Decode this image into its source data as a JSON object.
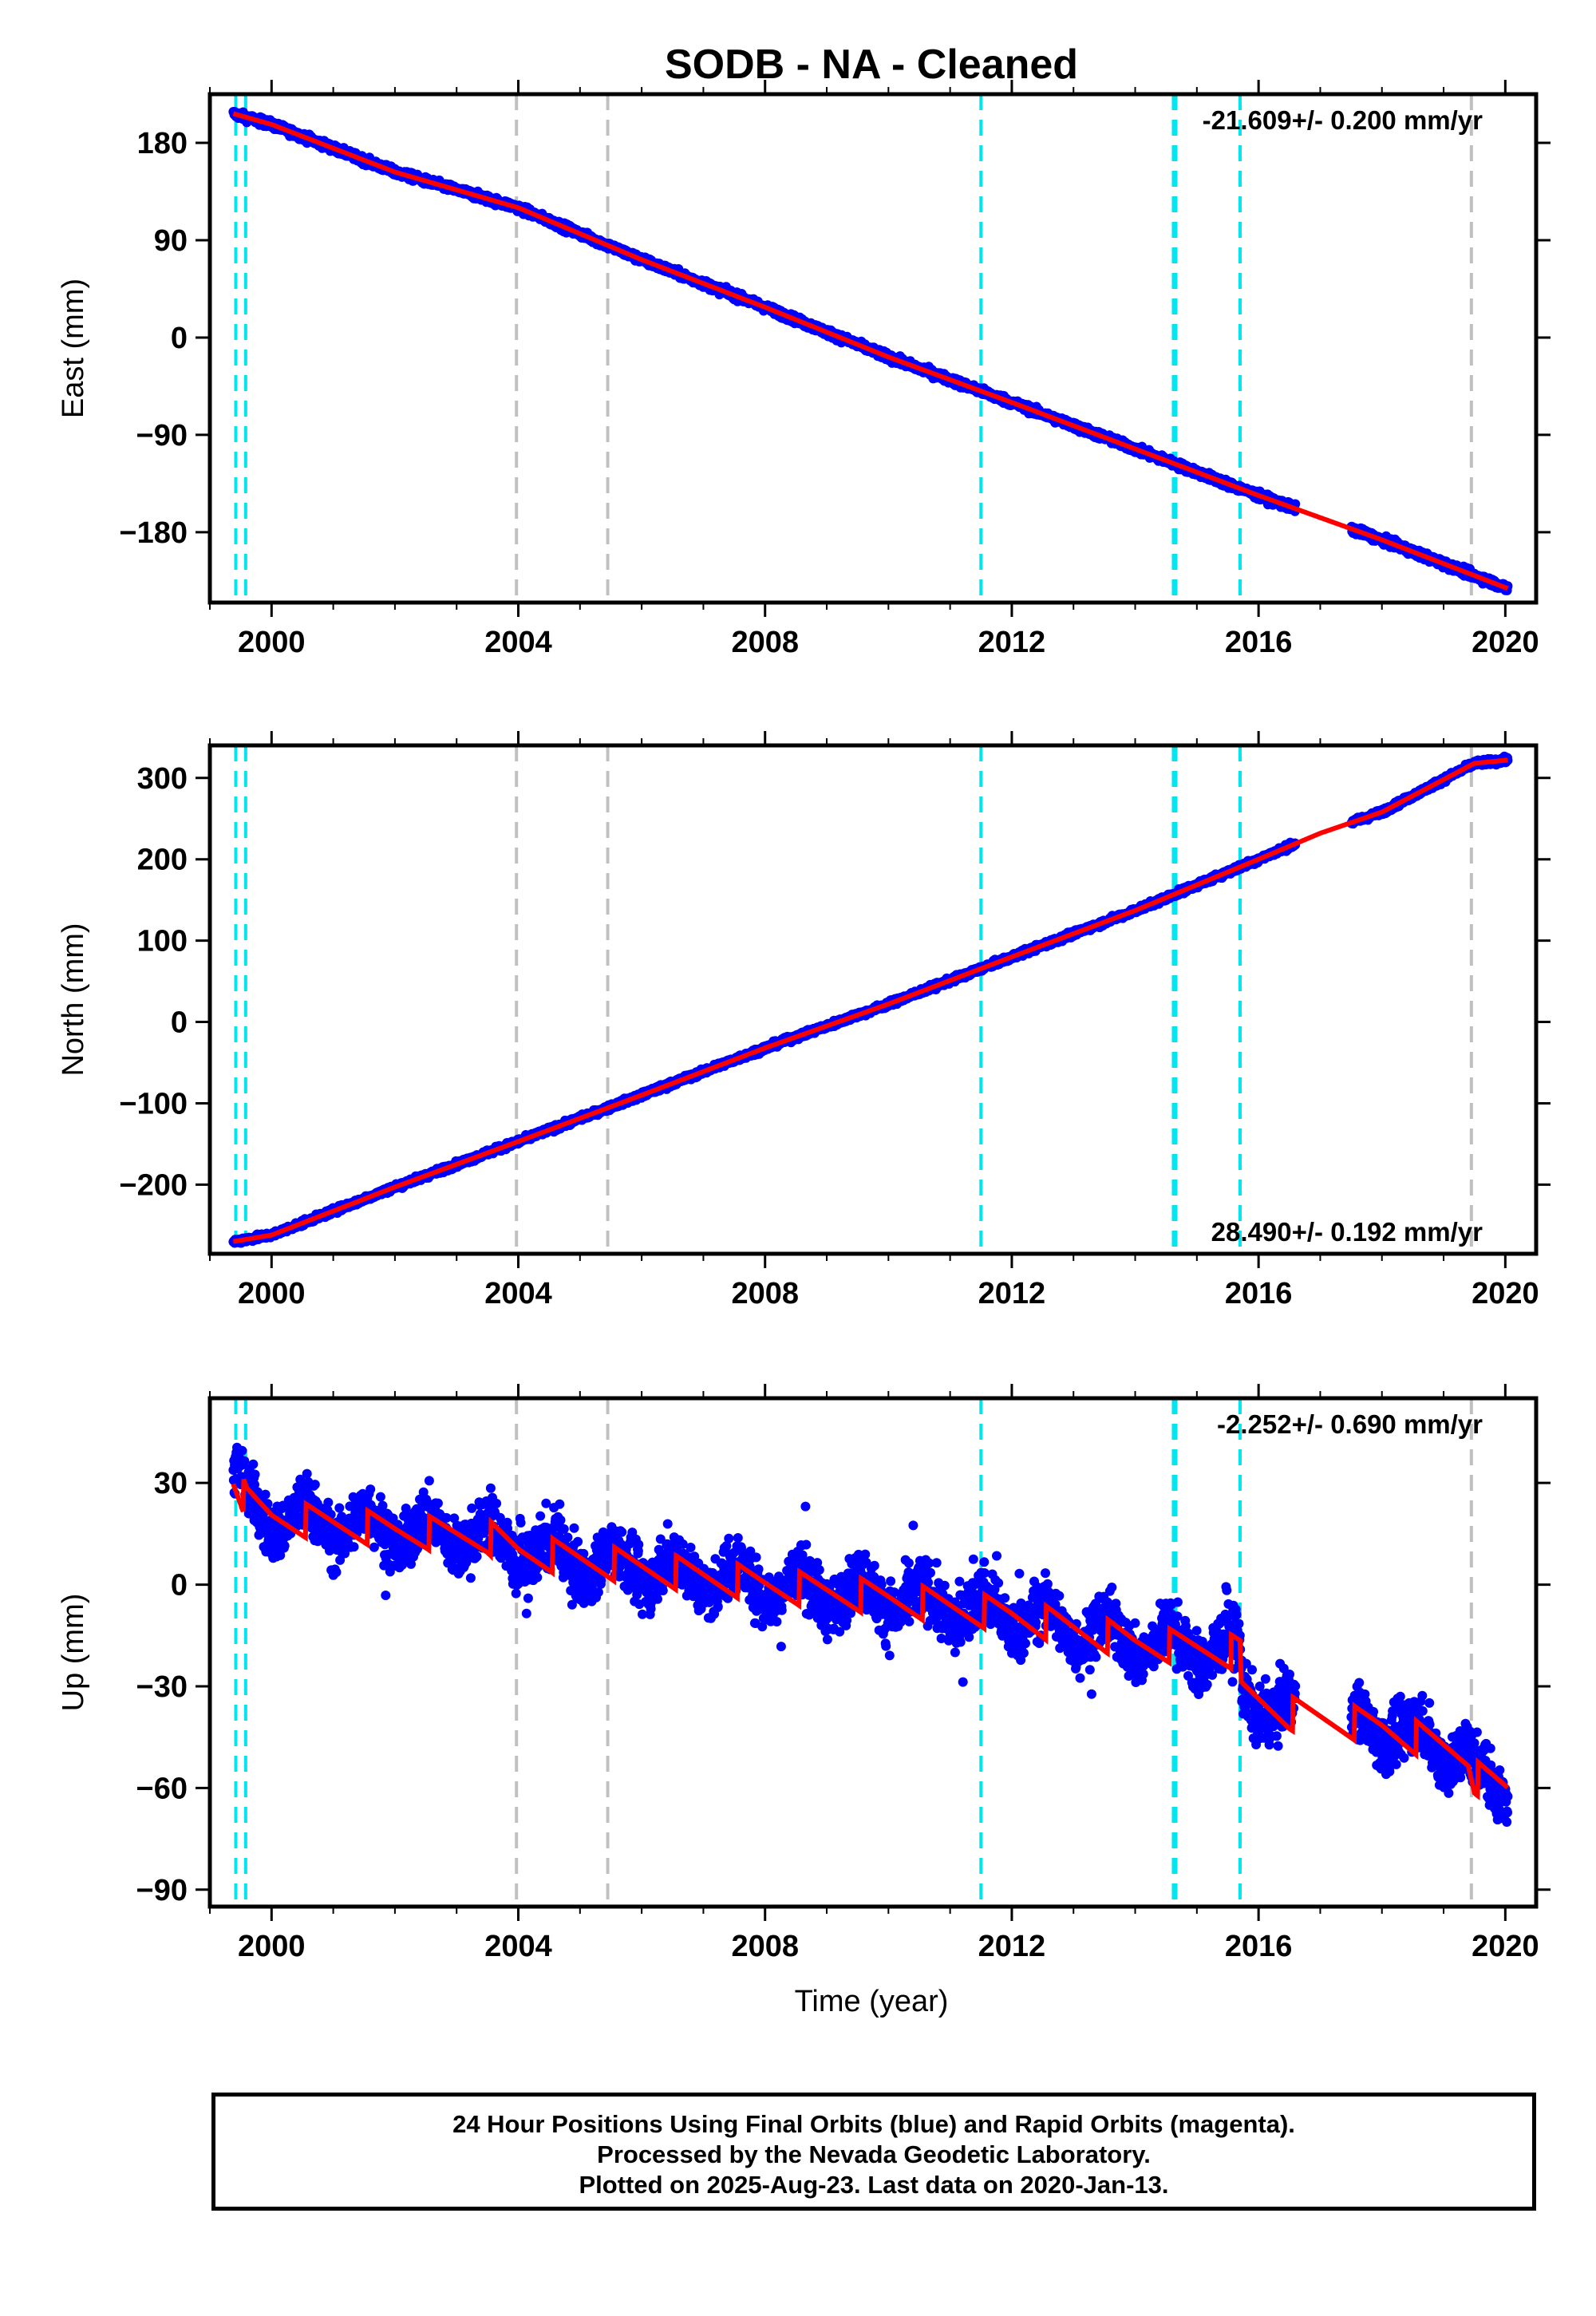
{
  "title": "SODB  - NA - Cleaned",
  "xlabel": "Time (year)",
  "footer": {
    "line1": "24 Hour Positions Using Final Orbits (blue) and Rapid Orbits (magenta).",
    "line2": "Processed by the Nevada Geodetic Laboratory.",
    "line3": "Plotted on 2025-Aug-23. Last data on 2020-Jan-13."
  },
  "colors": {
    "data": "#0000ff",
    "model": "#ff0000",
    "equipment_change": "#00e5ee",
    "other_event": "#c0c0c0",
    "frame": "#000000"
  },
  "chart_data": [
    {
      "type": "scatter",
      "name": "east",
      "ylabel": "East (mm)",
      "xlim": [
        1999.0,
        2020.5
      ],
      "ylim": [
        -245,
        225
      ],
      "xticks": [
        2000,
        2004,
        2008,
        2012,
        2016,
        2020
      ],
      "yticks": [
        -180,
        -90,
        0,
        90,
        180
      ],
      "ytick_labels": [
        "−180",
        "−90",
        "0",
        "90",
        "180"
      ],
      "rate_label": "-21.609+/- 0.200 mm/yr",
      "rate_position": "top-right",
      "data_start": 1999.38,
      "data_end": 2020.04,
      "data_gap": [
        2016.6,
        2017.5
      ],
      "series": [
        {
          "name": "daily",
          "noise": 2.5,
          "x": [
            1999.38,
            2000.0,
            2002.0,
            2004.0,
            2006.0,
            2008.0,
            2010.0,
            2012.0,
            2014.0,
            2016.0,
            2018.0,
            2020.04
          ],
          "y": [
            207,
            197,
            153,
            120,
            72,
            28,
            -18,
            -60,
            -103,
            -146,
            -187,
            -232
          ]
        },
        {
          "name": "model",
          "x": [
            1999.38,
            2000.0,
            2002.0,
            2004.0,
            2006.0,
            2008.0,
            2010.0,
            2012.0,
            2014.0,
            2016.0,
            2018.0,
            2020.04
          ],
          "y": [
            207,
            197,
            153,
            120,
            72,
            28,
            -18,
            -60,
            -103,
            -146,
            -187,
            -232
          ]
        }
      ]
    },
    {
      "type": "scatter",
      "name": "north",
      "ylabel": "North (mm)",
      "xlim": [
        1999.0,
        2020.5
      ],
      "ylim": [
        -285,
        340
      ],
      "xticks": [
        2000,
        2004,
        2008,
        2012,
        2016,
        2020
      ],
      "yticks": [
        -200,
        -100,
        0,
        100,
        200,
        300
      ],
      "ytick_labels": [
        "−200",
        "−100",
        "0",
        "100",
        "200",
        "300"
      ],
      "rate_label": "28.490+/- 0.192 mm/yr",
      "rate_position": "bottom-right",
      "data_start": 1999.38,
      "data_end": 2020.04,
      "data_gap": [
        2016.6,
        2017.5
      ],
      "series": [
        {
          "name": "daily",
          "noise": 2.5,
          "x": [
            1999.38,
            2000.0,
            2002.0,
            2004.0,
            2006.0,
            2008.0,
            2010.0,
            2012.0,
            2014.0,
            2016.0,
            2017.0,
            2018.0,
            2019.5,
            2020.04
          ],
          "y": [
            -270,
            -262,
            -203,
            -147,
            -90,
            -32,
            22,
            80,
            137,
            200,
            232,
            258,
            318,
            322
          ]
        },
        {
          "name": "model",
          "x": [
            1999.38,
            2000.0,
            2002.0,
            2004.0,
            2006.0,
            2008.0,
            2010.0,
            2012.0,
            2014.0,
            2016.0,
            2017.0,
            2018.0,
            2019.5,
            2020.04
          ],
          "y": [
            -270,
            -262,
            -203,
            -147,
            -90,
            -32,
            22,
            80,
            137,
            200,
            232,
            258,
            318,
            322
          ]
        }
      ]
    },
    {
      "type": "scatter",
      "name": "up",
      "ylabel": "Up (mm)",
      "xlim": [
        1999.0,
        2020.5
      ],
      "ylim": [
        -95,
        55
      ],
      "xticks": [
        2000,
        2004,
        2008,
        2012,
        2016,
        2020
      ],
      "yticks": [
        -90,
        -60,
        -30,
        0,
        30
      ],
      "ytick_labels": [
        "−90",
        "−60",
        "−30",
        "0",
        "30"
      ],
      "rate_label": "-2.252+/- 0.690 mm/yr",
      "rate_position": "top-right",
      "data_start": 1999.38,
      "data_end": 2020.04,
      "data_gap": [
        2016.6,
        2017.5
      ],
      "series": [
        {
          "name": "daily",
          "noise": 6,
          "x": [
            1999.38,
            1999.6,
            2000.0,
            2002.0,
            2003.5,
            2004.0,
            2006.0,
            2008.0,
            2010.0,
            2012.0,
            2014.0,
            2015.7,
            2015.72,
            2016.5,
            2018.0,
            2019.4,
            2019.5,
            2020.04
          ],
          "y": [
            33,
            24,
            20,
            16,
            14,
            10,
            5,
            0,
            -4,
            -9,
            -17,
            -20,
            -32,
            -38,
            -42,
            -50,
            -57,
            -60
          ]
        },
        {
          "name": "model",
          "seasonal_amplitude": 5,
          "x": [
            1999.38,
            1999.6,
            2000.0,
            2002.0,
            2003.5,
            2004.0,
            2006.0,
            2008.0,
            2010.0,
            2012.0,
            2014.0,
            2015.7,
            2015.72,
            2016.5,
            2018.0,
            2019.4,
            2019.5,
            2020.04
          ],
          "y": [
            33,
            24,
            20,
            16,
            14,
            10,
            5,
            0,
            -4,
            -9,
            -17,
            -20,
            -32,
            -38,
            -42,
            -50,
            -57,
            -60
          ]
        }
      ]
    }
  ],
  "event_lines": [
    {
      "year": 1999.42,
      "kind": "equipment_change"
    },
    {
      "year": 1999.58,
      "kind": "equipment_change"
    },
    {
      "year": 2003.97,
      "kind": "other_event"
    },
    {
      "year": 2005.45,
      "kind": "other_event"
    },
    {
      "year": 2011.5,
      "kind": "equipment_change"
    },
    {
      "year": 2014.62,
      "kind": "equipment_change"
    },
    {
      "year": 2014.66,
      "kind": "equipment_change"
    },
    {
      "year": 2015.7,
      "kind": "equipment_change"
    },
    {
      "year": 2019.45,
      "kind": "other_event"
    }
  ]
}
